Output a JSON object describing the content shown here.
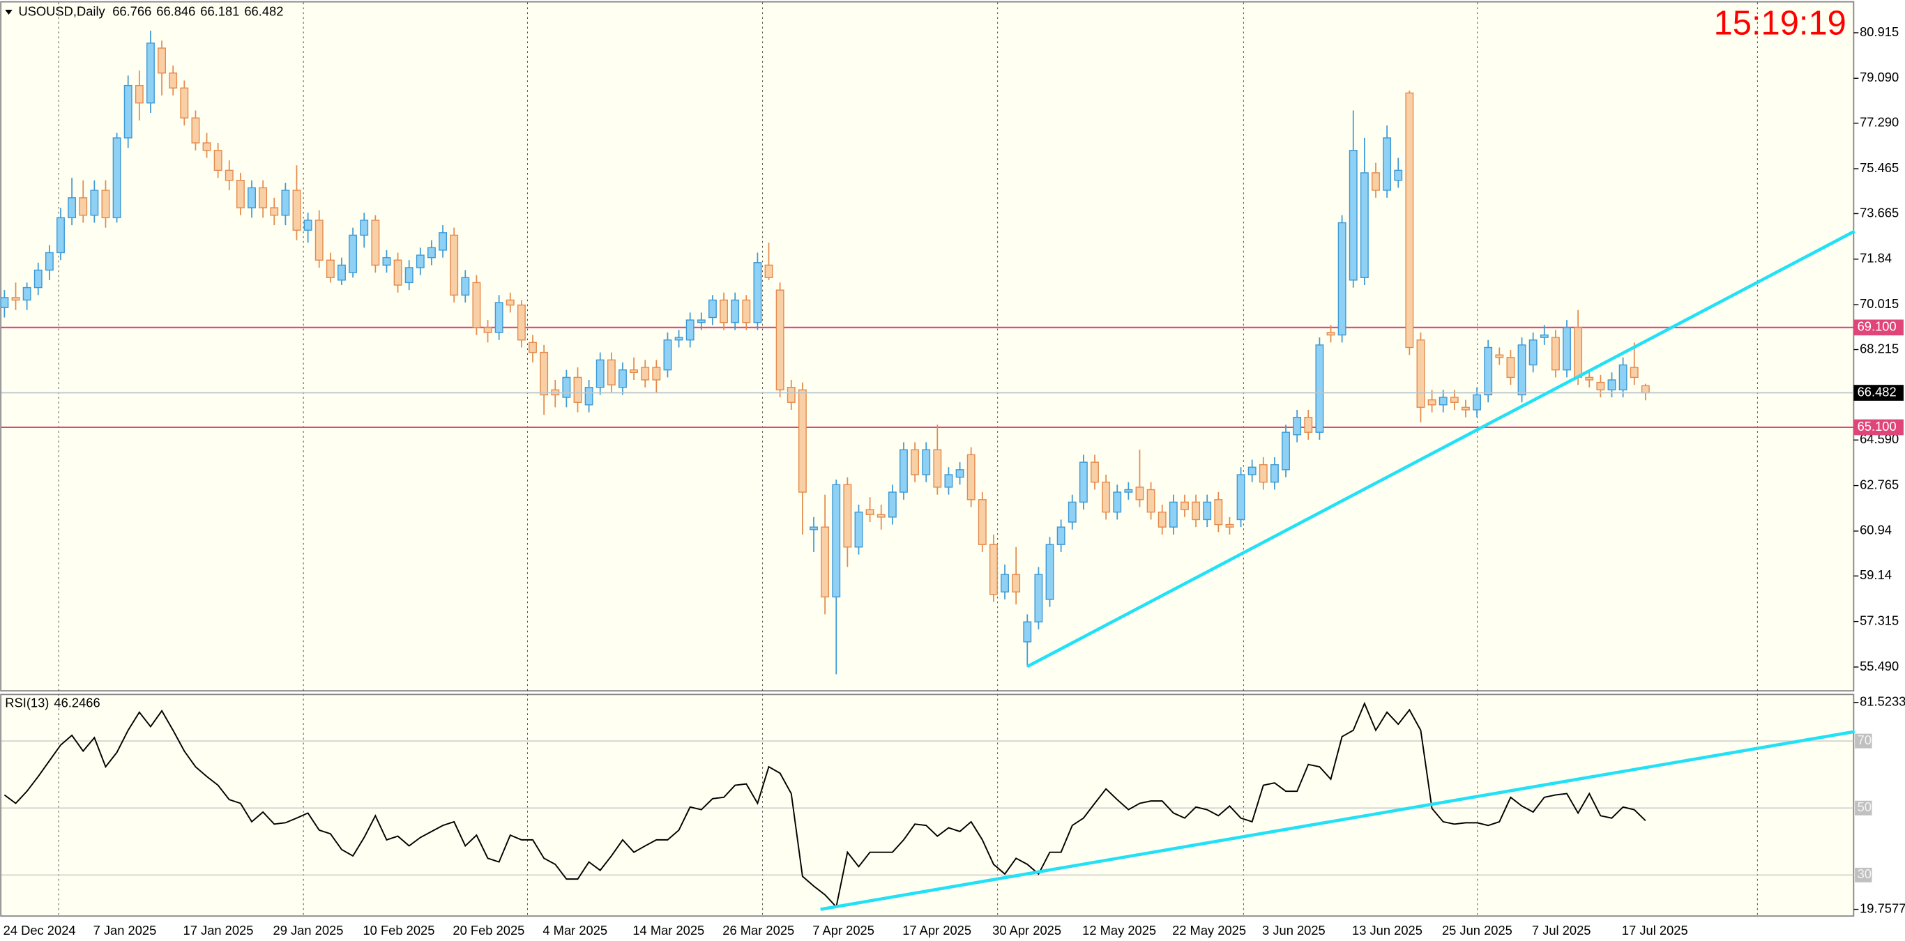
{
  "chart_data": [
    {
      "type": "candlestick",
      "title": "USOUSD,Daily",
      "clock": "15:19:19",
      "categories": [
        "24 Dec 2024",
        null,
        null,
        null,
        null,
        null,
        null,
        null,
        "7 Jan 2025",
        null,
        null,
        null,
        null,
        null,
        null,
        null,
        "17 Jan 2025",
        null,
        null,
        null,
        null,
        null,
        null,
        null,
        "29 Jan 2025",
        null,
        null,
        null,
        null,
        null,
        null,
        null,
        "10 Feb 2025",
        null,
        null,
        null,
        null,
        null,
        null,
        null,
        "20 Feb 2025",
        null,
        null,
        null,
        null,
        null,
        null,
        null,
        "4 Mar 2025",
        null,
        null,
        null,
        null,
        null,
        null,
        null,
        "14 Mar 2025",
        null,
        null,
        null,
        null,
        null,
        null,
        null,
        "26 Mar 2025",
        null,
        null,
        null,
        null,
        null,
        null,
        null,
        "7 Apr 2025",
        null,
        null,
        null,
        null,
        null,
        null,
        null,
        "17 Apr 2025",
        null,
        null,
        null,
        null,
        null,
        null,
        null,
        "30 Apr 2025",
        null,
        null,
        null,
        null,
        null,
        null,
        null,
        "12 May 2025",
        null,
        null,
        null,
        null,
        null,
        null,
        null,
        "22 May 2025",
        null,
        null,
        null,
        null,
        null,
        null,
        null,
        "3 Jun 2025",
        null,
        null,
        null,
        null,
        null,
        null,
        null,
        "13 Jun 2025",
        null,
        null,
        null,
        null,
        null,
        null,
        null,
        "25 Jun 2025",
        null,
        null,
        null,
        null,
        null,
        null,
        null,
        "7 Jul 2025",
        null,
        null,
        null,
        null,
        null,
        null,
        null,
        "17 Jul 2025",
        null,
        null
      ],
      "open": [
        69.9,
        70.3,
        70.2,
        70.7,
        71.4,
        72.1,
        73.5,
        74.3,
        73.6,
        74.6,
        73.5,
        76.7,
        78.8,
        78.1,
        80.3,
        79.3,
        78.7,
        77.5,
        76.5,
        76.2,
        75.4,
        75.0,
        73.9,
        74.7,
        73.9,
        73.6,
        74.6,
        73.0,
        73.4,
        71.8,
        71.0,
        71.3,
        72.8,
        73.4,
        71.6,
        71.8,
        70.9,
        71.5,
        71.9,
        72.2,
        72.8,
        70.4,
        70.9,
        69.1,
        68.9,
        70.2,
        70.0,
        68.5,
        68.1,
        66.6,
        66.3,
        67.1,
        66.0,
        66.7,
        67.8,
        66.7,
        67.4,
        67.5,
        67.5,
        67.4,
        68.6,
        68.6,
        69.3,
        69.5,
        70.2,
        69.3,
        70.2,
        69.3,
        71.6,
        70.6,
        66.7,
        66.6,
        61.0,
        61.1,
        58.3,
        62.8,
        60.3,
        61.8,
        61.6,
        61.5,
        62.5,
        64.2,
        63.2,
        64.2,
        62.7,
        63.1,
        64.0,
        62.2,
        60.4,
        58.5,
        59.2,
        56.5,
        57.3,
        58.2,
        60.4,
        61.3,
        62.1,
        63.7,
        62.9,
        61.7,
        62.5,
        62.7,
        62.6,
        61.7,
        61.1,
        62.1,
        62.1,
        61.4,
        62.2,
        61.2,
        61.4,
        63.2,
        63.6,
        62.9,
        63.4,
        64.8,
        65.5,
        64.9,
        68.9,
        68.8,
        71.0,
        71.1,
        75.3,
        74.6,
        75.0,
        78.5,
        68.6,
        66.2,
        66.0,
        66.3,
        65.9,
        65.8,
        66.4,
        68.0,
        67.9,
        66.4,
        67.6,
        68.7,
        68.7,
        67.4,
        69.1,
        67.1,
        66.9,
        66.6,
        66.6,
        67.5,
        66.766
      ],
      "high": [
        70.6,
        70.9,
        70.9,
        71.7,
        72.4,
        73.9,
        75.1,
        75.0,
        75.0,
        75.0,
        76.9,
        79.2,
        79.4,
        81.0,
        80.6,
        79.6,
        79.0,
        77.8,
        76.9,
        76.5,
        75.8,
        75.3,
        75.0,
        75.0,
        74.3,
        74.9,
        75.6,
        73.7,
        73.8,
        72.1,
        71.9,
        73.1,
        73.7,
        73.6,
        72.2,
        72.1,
        71.8,
        72.3,
        72.6,
        73.2,
        73.1,
        71.4,
        71.2,
        69.4,
        70.4,
        70.5,
        70.2,
        68.8,
        68.4,
        67.0,
        67.4,
        67.5,
        67.0,
        68.1,
        68.1,
        67.7,
        67.9,
        67.8,
        67.8,
        68.9,
        69.0,
        69.7,
        69.7,
        70.4,
        70.5,
        70.5,
        70.4,
        72.1,
        72.5,
        70.9,
        67.0,
        66.9,
        61.5,
        62.4,
        63.0,
        63.1,
        62.0,
        62.3,
        62.0,
        62.8,
        64.5,
        64.5,
        64.5,
        65.2,
        63.5,
        63.7,
        64.3,
        62.5,
        60.8,
        59.6,
        60.3,
        57.6,
        59.5,
        60.7,
        61.4,
        62.4,
        64.0,
        64.0,
        63.2,
        62.8,
        62.9,
        64.2,
        62.9,
        62.0,
        62.4,
        62.4,
        62.4,
        62.4,
        62.5,
        61.5,
        63.5,
        63.8,
        63.9,
        63.9,
        65.2,
        65.8,
        65.8,
        68.7,
        69.2,
        73.6,
        77.8,
        76.7,
        75.7,
        77.2,
        75.9,
        78.6,
        68.9,
        66.6,
        66.6,
        66.6,
        66.2,
        66.7,
        68.6,
        68.3,
        68.2,
        68.7,
        68.9,
        69.2,
        69.0,
        69.4,
        69.8,
        67.4,
        67.2,
        67.3,
        67.9,
        68.5,
        66.846
      ],
      "low": [
        69.5,
        69.8,
        69.8,
        70.4,
        71.0,
        71.8,
        73.2,
        73.3,
        73.3,
        73.1,
        73.3,
        76.3,
        77.4,
        77.7,
        78.4,
        78.4,
        77.2,
        76.2,
        75.9,
        75.1,
        74.6,
        73.6,
        73.5,
        73.5,
        73.2,
        73.2,
        72.6,
        72.5,
        71.5,
        70.9,
        70.8,
        71.1,
        72.3,
        71.3,
        71.3,
        70.5,
        70.6,
        71.2,
        71.6,
        71.9,
        70.1,
        70.1,
        68.8,
        68.5,
        68.6,
        69.7,
        68.3,
        67.7,
        65.6,
        65.9,
        65.9,
        65.7,
        65.7,
        66.4,
        66.5,
        66.4,
        67.0,
        66.7,
        66.5,
        67.1,
        68.3,
        68.3,
        69.0,
        69.2,
        69.0,
        69.0,
        69.0,
        69.0,
        71.0,
        66.3,
        65.8,
        60.8,
        60.1,
        57.6,
        55.2,
        59.5,
        60.0,
        61.3,
        61.0,
        61.2,
        62.2,
        62.9,
        62.9,
        62.4,
        62.4,
        62.8,
        61.9,
        60.1,
        58.1,
        58.2,
        58.0,
        55.5,
        57.0,
        57.9,
        60.1,
        61.0,
        61.8,
        62.6,
        61.4,
        61.4,
        62.2,
        61.9,
        61.4,
        60.8,
        60.8,
        61.5,
        61.1,
        61.1,
        60.9,
        60.8,
        61.1,
        62.9,
        62.6,
        62.6,
        63.1,
        64.5,
        64.6,
        64.6,
        68.5,
        68.5,
        70.7,
        70.8,
        74.3,
        74.3,
        74.7,
        68.0,
        65.3,
        65.7,
        65.7,
        65.8,
        65.5,
        65.5,
        66.1,
        67.6,
        66.8,
        66.1,
        67.3,
        68.4,
        67.1,
        67.1,
        66.8,
        66.7,
        66.3,
        66.3,
        66.3,
        66.8,
        66.181
      ],
      "close": [
        70.3,
        70.2,
        70.7,
        71.4,
        72.1,
        73.5,
        74.3,
        73.6,
        74.6,
        73.5,
        76.7,
        78.8,
        78.1,
        80.5,
        79.3,
        78.7,
        77.5,
        76.5,
        76.2,
        75.4,
        75.0,
        73.9,
        74.7,
        73.9,
        73.6,
        74.6,
        73.0,
        73.4,
        71.8,
        71.1,
        71.6,
        72.8,
        73.4,
        71.6,
        71.9,
        70.8,
        71.5,
        72.0,
        72.3,
        72.9,
        70.4,
        71.1,
        69.1,
        68.9,
        70.1,
        70.0,
        68.6,
        68.1,
        66.4,
        66.4,
        67.1,
        66.1,
        66.7,
        67.8,
        66.8,
        67.4,
        67.3,
        67.0,
        67.0,
        68.6,
        68.7,
        69.4,
        69.4,
        70.2,
        69.3,
        70.2,
        69.3,
        71.7,
        71.1,
        66.6,
        66.1,
        62.5,
        61.1,
        58.3,
        62.8,
        60.3,
        61.7,
        61.6,
        61.5,
        62.5,
        64.2,
        63.2,
        64.2,
        62.7,
        63.2,
        63.4,
        62.2,
        60.4,
        58.4,
        59.2,
        58.5,
        57.3,
        59.2,
        60.4,
        61.1,
        62.1,
        63.7,
        62.9,
        61.7,
        62.5,
        62.6,
        62.2,
        61.7,
        61.1,
        62.1,
        61.8,
        61.4,
        62.1,
        61.2,
        61.1,
        63.2,
        63.5,
        62.9,
        63.6,
        64.9,
        65.5,
        64.9,
        68.4,
        68.8,
        73.3,
        76.2,
        75.3,
        74.6,
        76.7,
        75.4,
        68.3,
        65.9,
        66.0,
        66.3,
        66.1,
        65.8,
        66.4,
        68.3,
        67.9,
        67.1,
        68.4,
        68.6,
        68.8,
        67.4,
        69.1,
        67.1,
        67.0,
        66.6,
        67.0,
        67.6,
        67.1,
        66.482
      ],
      "up_color": "#8fd0f5",
      "up_border": "#3d9ad6",
      "down_color": "#f9d0a6",
      "down_border": "#e58a4c",
      "ylim": [
        54.56,
        82.13
      ],
      "yticks": [
        {
          "value": 55.49,
          "label": "55.490"
        },
        57.315,
        59.14,
        60.94,
        62.765,
        {
          "value": 64.59,
          "label": "64.590"
        },
        68.215,
        70.015,
        71.84,
        73.665,
        75.465,
        {
          "value": 77.29,
          "label": "77.290"
        },
        {
          "value": 79.09,
          "label": "79.090"
        },
        80.915
      ],
      "hlines": [
        {
          "value": 69.1,
          "label": "69.100",
          "color": "#e0457a"
        },
        {
          "value": 65.1,
          "label": "65.100",
          "color": "#e0457a"
        }
      ],
      "price_line_color": "#b8c4cc",
      "trendlines": [
        {
          "x": [
            91,
            164.6
          ],
          "y": [
            55.51,
            72.96
          ],
          "color": "#22e0f6"
        }
      ]
    },
    {
      "type": "line",
      "title": "RSI(13)",
      "color": "#000000",
      "values": [
        53.9,
        51.4,
        55.0,
        59.4,
        64.1,
        68.8,
        71.7,
        67.0,
        71.0,
        62.3,
        66.6,
        73.2,
        78.6,
        74.3,
        79.0,
        73.2,
        67.0,
        62.3,
        59.4,
        56.8,
        52.5,
        51.4,
        45.9,
        48.8,
        45.2,
        45.6,
        47.0,
        48.5,
        43.4,
        42.3,
        37.6,
        35.7,
        41.2,
        47.7,
        40.5,
        41.6,
        38.7,
        41.2,
        43.0,
        44.8,
        45.9,
        38.7,
        41.9,
        35.0,
        33.9,
        41.9,
        40.5,
        40.5,
        35.0,
        33.2,
        28.8,
        28.8,
        33.9,
        31.4,
        35.7,
        40.5,
        36.8,
        38.7,
        40.5,
        40.5,
        43.4,
        50.3,
        49.5,
        52.8,
        53.2,
        56.8,
        57.2,
        51.4,
        62.3,
        60.4,
        54.3,
        29.6,
        26.7,
        24.1,
        20.5,
        36.8,
        32.5,
        36.8,
        36.8,
        36.8,
        40.5,
        45.2,
        44.8,
        41.6,
        44.1,
        43.0,
        45.9,
        40.5,
        33.2,
        30.3,
        35.0,
        33.2,
        30.3,
        36.8,
        36.8,
        44.8,
        47.0,
        51.4,
        55.7,
        52.5,
        49.5,
        51.4,
        52.1,
        52.1,
        48.5,
        47.0,
        50.3,
        49.5,
        47.7,
        50.6,
        47.0,
        45.9,
        56.8,
        57.5,
        55.0,
        55.0,
        63.0,
        62.3,
        58.6,
        71.3,
        73.2,
        81.2,
        73.2,
        78.6,
        75.0,
        79.3,
        73.2,
        49.9,
        45.9,
        45.2,
        45.6,
        45.6,
        44.8,
        45.9,
        53.2,
        50.6,
        48.8,
        53.2,
        53.9,
        54.3,
        48.5,
        54.3,
        47.7,
        47.0,
        50.3,
        49.5,
        46.2466
      ],
      "ylim": [
        19.7577,
        81.5233
      ],
      "yticks": [
        19.7577,
        30,
        50,
        70,
        81.5233
      ],
      "trendlines": [
        {
          "x": [
            72.6,
            164.6
          ],
          "y": [
            19.76,
            72.8
          ],
          "color": "#22e0f6"
        }
      ]
    }
  ]
}
